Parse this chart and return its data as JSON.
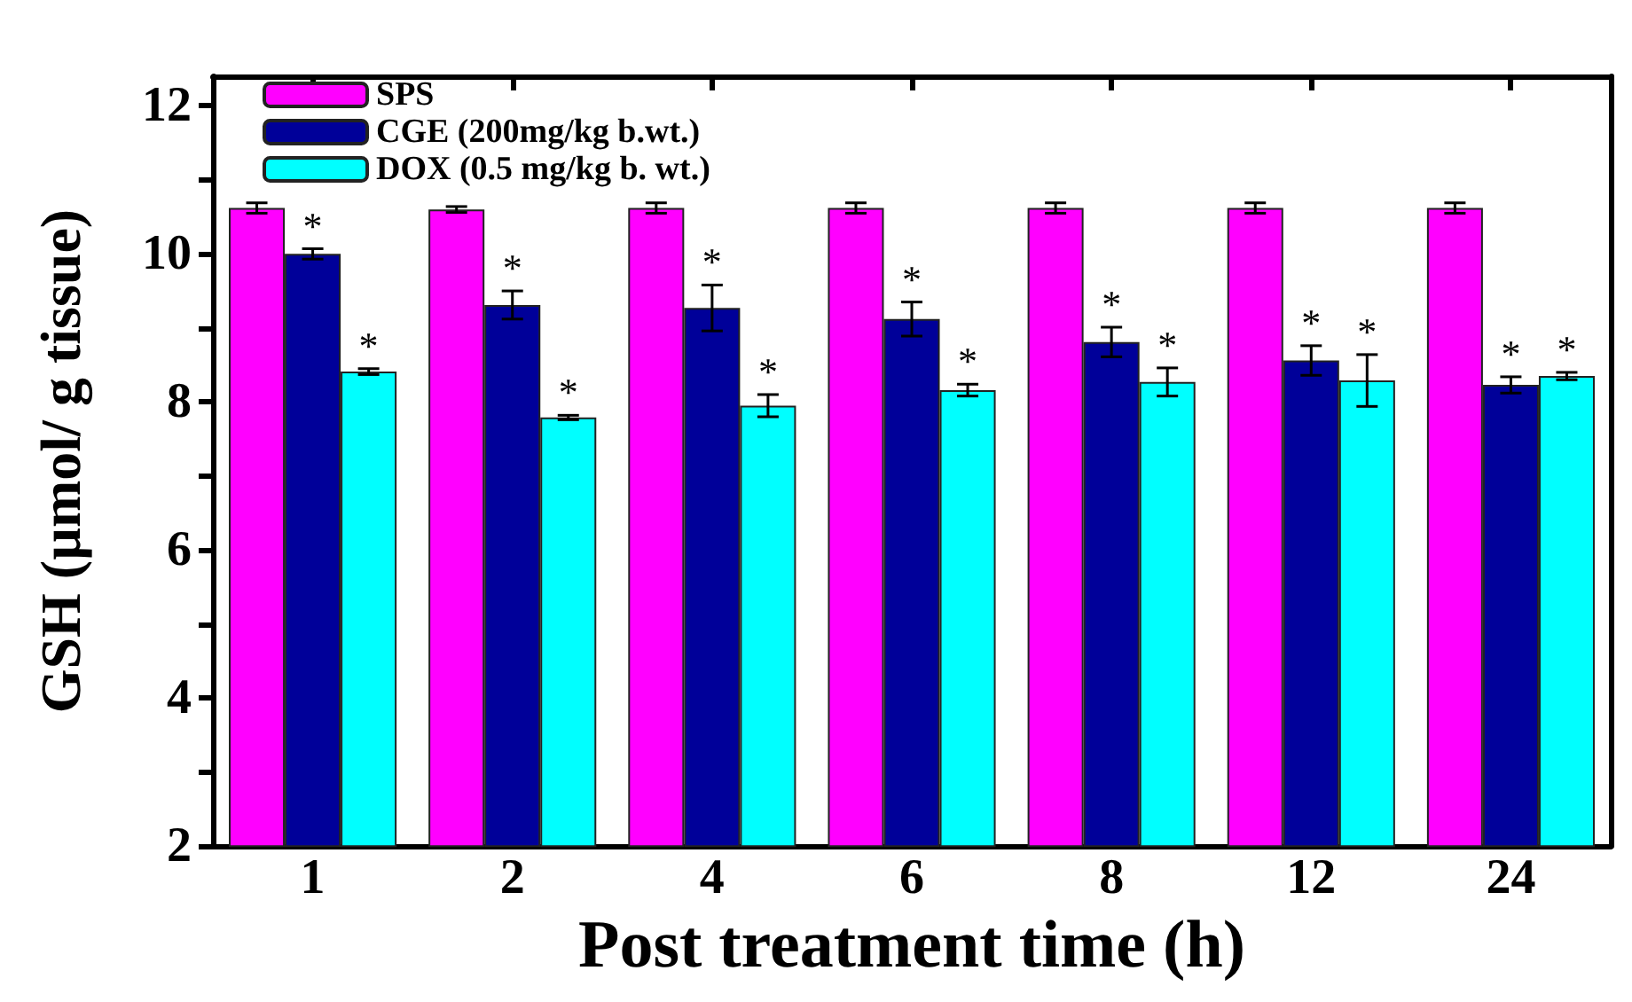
{
  "chart_data": {
    "type": "bar",
    "xlabel": "Post treatment time (h)",
    "ylabel": "GSH (µmol/ g tissue)",
    "categories": [
      "1",
      "2",
      "4",
      "6",
      "8",
      "12",
      "24"
    ],
    "series": [
      {
        "name": "SPS",
        "color": "#ff00ff",
        "values": [
          10.62,
          10.6,
          10.62,
          10.62,
          10.62,
          10.62,
          10.62
        ],
        "errors": [
          0.07,
          0.04,
          0.07,
          0.07,
          0.07,
          0.07,
          0.07
        ]
      },
      {
        "name": "CGE (200mg/kg b.wt.)",
        "color": "#000099",
        "values": [
          10.0,
          9.31,
          9.27,
          9.12,
          8.81,
          8.56,
          8.23
        ],
        "errors": [
          0.07,
          0.19,
          0.31,
          0.23,
          0.2,
          0.2,
          0.11
        ],
        "value_labels": [
          "*",
          "*",
          "*",
          "*",
          "*",
          "*",
          "*"
        ]
      },
      {
        "name": "DOX (0.5 mg/kg b. wt.)",
        "color": "#00ffff",
        "values": [
          8.41,
          7.79,
          7.95,
          8.16,
          8.27,
          8.29,
          8.35
        ],
        "errors": [
          0.04,
          0.03,
          0.15,
          0.08,
          0.19,
          0.35,
          0.05
        ],
        "value_labels": [
          "*",
          "*",
          "*",
          "*",
          "*",
          "*",
          "*"
        ]
      }
    ],
    "ylim": [
      2,
      12.4
    ],
    "yticks": [
      2,
      {
        "value": 3,
        "label": null
      },
      4,
      {
        "value": 5,
        "label": null
      },
      6,
      {
        "value": 7,
        "label": null
      },
      8,
      {
        "value": 9,
        "label": null
      },
      10,
      {
        "value": 11,
        "label": null
      },
      12
    ],
    "legend": "top left",
    "grid": false
  }
}
